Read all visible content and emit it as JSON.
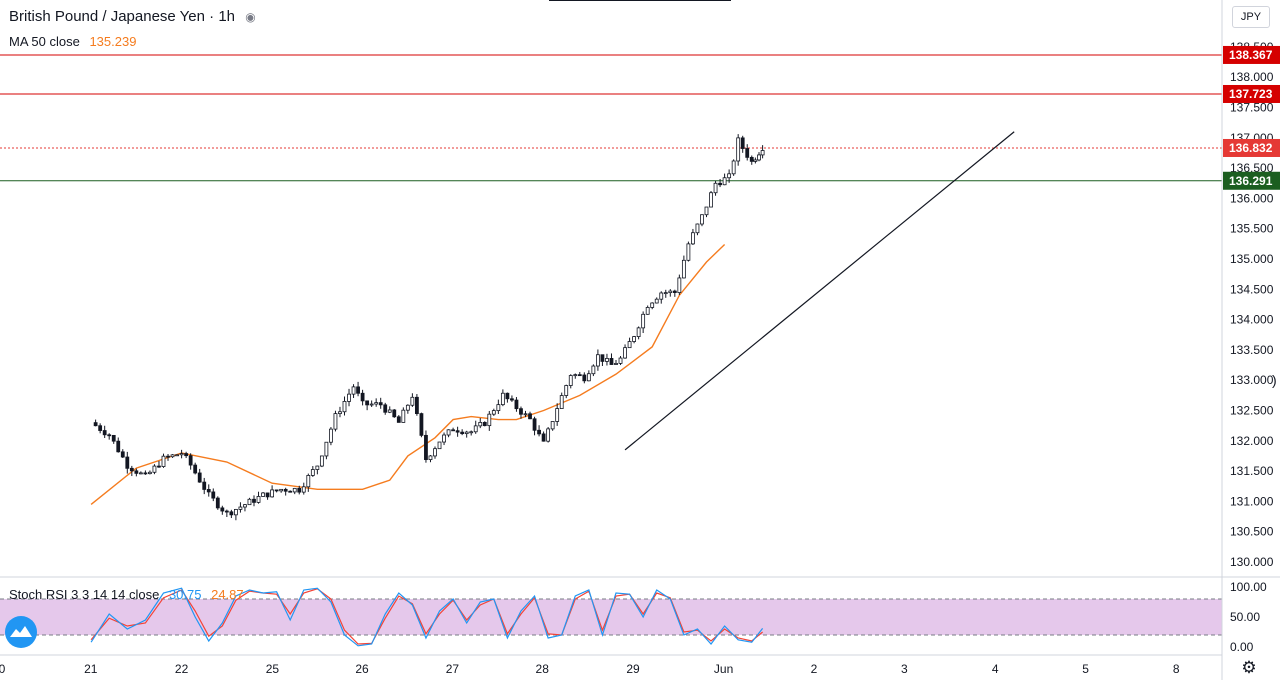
{
  "header": {
    "symbol": "British Pound / Japanese Yen",
    "separator": "·",
    "interval": "1h",
    "visibility_icon": "eye-icon"
  },
  "ma_legend": {
    "label": "MA 50 close",
    "value": "135.239"
  },
  "stoch_legend": {
    "label": "Stoch RSI 3 3 14 14 close",
    "k_value": "30.75",
    "d_value": "24.87"
  },
  "currency_button": "JPY",
  "colors": {
    "up": "#26a69a",
    "down": "#ef5350",
    "candle": "#131722",
    "ma": "#f57c1f",
    "stoch_k": "#2196f3",
    "stoch_d": "#f44336",
    "stoch_band": "#e1bee7",
    "resistance": "#d50000",
    "support": "#1b5e20",
    "price_line": "#e53935"
  },
  "chart_data": [
    {
      "type": "candlestick",
      "title": "British Pound / Japanese Yen · 1h",
      "ylim": [
        129.8,
        138.8
      ],
      "x_ticks": [
        "0",
        "21",
        "22",
        "25",
        "26",
        "27",
        "28",
        "29",
        "Jun",
        "2",
        "3",
        "4",
        "5",
        "8"
      ],
      "y_ticks": [
        "130.000",
        "130.500",
        "131.000",
        "131.500",
        "132.000",
        "132.500",
        "133.000",
        "133.500",
        "134.000",
        "134.500",
        "135.000",
        "135.500",
        "136.000",
        "136.500",
        "137.000",
        "137.500",
        "138.000",
        "138.500"
      ],
      "price_labels": [
        {
          "value": "138.367",
          "kind": "resistance"
        },
        {
          "value": "137.723",
          "kind": "resistance"
        },
        {
          "value": "136.832",
          "kind": "last"
        },
        {
          "value": "136.291",
          "kind": "support"
        }
      ],
      "trendline": {
        "from": {
          "x": 0.6,
          "y": 131.85
        },
        "to": {
          "x": 4.1,
          "y": 137.1
        }
      },
      "ma50": [
        [
          -1,
          130.95
        ],
        [
          -0.5,
          131.55
        ],
        [
          0,
          131.8
        ],
        [
          0.5,
          131.65
        ],
        [
          1,
          131.3
        ],
        [
          1.5,
          131.2
        ],
        [
          2,
          131.2
        ],
        [
          2.3,
          131.35
        ],
        [
          2.5,
          131.75
        ],
        [
          2.8,
          132.05
        ],
        [
          3,
          132.35
        ],
        [
          3.2,
          132.4
        ],
        [
          3.5,
          132.35
        ],
        [
          3.7,
          132.35
        ],
        [
          4,
          132.5
        ],
        [
          4.4,
          132.75
        ],
        [
          4.8,
          133.1
        ],
        [
          5.2,
          133.55
        ],
        [
          5.5,
          134.4
        ],
        [
          5.8,
          134.95
        ],
        [
          6,
          135.24
        ]
      ],
      "price_path": [
        [
          -1,
          132.3
        ],
        [
          -0.8,
          132.1
        ],
        [
          -0.6,
          131.6
        ],
        [
          -0.4,
          131.4
        ],
        [
          -0.2,
          131.7
        ],
        [
          0,
          131.8
        ],
        [
          0.1,
          131.6
        ],
        [
          0.3,
          131.1
        ],
        [
          0.5,
          130.8
        ],
        [
          0.7,
          130.95
        ],
        [
          0.9,
          131.1
        ],
        [
          1.1,
          131.2
        ],
        [
          1.3,
          131.2
        ],
        [
          1.5,
          131.6
        ],
        [
          1.7,
          132.4
        ],
        [
          1.9,
          132.9
        ],
        [
          2.0,
          132.6
        ],
        [
          2.2,
          132.6
        ],
        [
          2.4,
          132.3
        ],
        [
          2.55,
          132.75
        ],
        [
          2.7,
          131.7
        ],
        [
          2.85,
          132.0
        ],
        [
          3.0,
          132.2
        ],
        [
          3.2,
          132.15
        ],
        [
          3.35,
          132.3
        ],
        [
          3.55,
          132.75
        ],
        [
          3.7,
          132.55
        ],
        [
          3.85,
          132.35
        ],
        [
          4.0,
          131.95
        ],
        [
          4.15,
          132.55
        ],
        [
          4.3,
          133.1
        ],
        [
          4.45,
          133.05
        ],
        [
          4.6,
          133.4
        ],
        [
          4.75,
          133.25
        ],
        [
          4.85,
          133.35
        ],
        [
          5.0,
          133.75
        ],
        [
          5.15,
          134.25
        ],
        [
          5.3,
          134.45
        ],
        [
          5.45,
          134.45
        ],
        [
          5.6,
          135.25
        ],
        [
          5.75,
          135.7
        ],
        [
          5.9,
          136.25
        ],
        [
          6.05,
          136.35
        ],
        [
          6.15,
          136.95
        ],
        [
          6.3,
          136.6
        ],
        [
          6.42,
          136.85
        ]
      ]
    },
    {
      "type": "line",
      "title": "Stoch RSI 3 3 14 14 close",
      "ylim": [
        0,
        100
      ],
      "y_ticks": [
        "100.00",
        "50.00",
        "0.00"
      ],
      "upper_band": 80,
      "lower_band": 20,
      "k_series": [
        [
          -1,
          8
        ],
        [
          -0.8,
          55
        ],
        [
          -0.6,
          30
        ],
        [
          -0.4,
          45
        ],
        [
          -0.2,
          90
        ],
        [
          0,
          98
        ],
        [
          0.15,
          50
        ],
        [
          0.3,
          10
        ],
        [
          0.45,
          40
        ],
        [
          0.6,
          85
        ],
        [
          0.75,
          95
        ],
        [
          0.9,
          90
        ],
        [
          1.05,
          92
        ],
        [
          1.2,
          45
        ],
        [
          1.35,
          95
        ],
        [
          1.5,
          98
        ],
        [
          1.65,
          75
        ],
        [
          1.8,
          20
        ],
        [
          1.95,
          2
        ],
        [
          2.1,
          5
        ],
        [
          2.25,
          55
        ],
        [
          2.4,
          90
        ],
        [
          2.55,
          70
        ],
        [
          2.7,
          15
        ],
        [
          2.85,
          60
        ],
        [
          3.0,
          80
        ],
        [
          3.15,
          40
        ],
        [
          3.3,
          75
        ],
        [
          3.45,
          80
        ],
        [
          3.6,
          15
        ],
        [
          3.75,
          60
        ],
        [
          3.9,
          85
        ],
        [
          4.05,
          15
        ],
        [
          4.2,
          20
        ],
        [
          4.35,
          85
        ],
        [
          4.5,
          95
        ],
        [
          4.65,
          20
        ],
        [
          4.8,
          90
        ],
        [
          4.95,
          88
        ],
        [
          5.1,
          50
        ],
        [
          5.25,
          95
        ],
        [
          5.4,
          80
        ],
        [
          5.55,
          20
        ],
        [
          5.7,
          30
        ],
        [
          5.85,
          5
        ],
        [
          6.0,
          35
        ],
        [
          6.15,
          12
        ],
        [
          6.3,
          8
        ],
        [
          6.42,
          31
        ]
      ],
      "d_series": [
        [
          -1,
          12
        ],
        [
          -0.8,
          48
        ],
        [
          -0.6,
          35
        ],
        [
          -0.4,
          40
        ],
        [
          -0.2,
          82
        ],
        [
          0,
          95
        ],
        [
          0.15,
          60
        ],
        [
          0.3,
          18
        ],
        [
          0.45,
          35
        ],
        [
          0.6,
          78
        ],
        [
          0.75,
          93
        ],
        [
          0.9,
          90
        ],
        [
          1.05,
          88
        ],
        [
          1.2,
          55
        ],
        [
          1.35,
          90
        ],
        [
          1.5,
          97
        ],
        [
          1.65,
          80
        ],
        [
          1.8,
          28
        ],
        [
          1.95,
          5
        ],
        [
          2.1,
          6
        ],
        [
          2.25,
          48
        ],
        [
          2.4,
          85
        ],
        [
          2.55,
          72
        ],
        [
          2.7,
          22
        ],
        [
          2.85,
          55
        ],
        [
          3.0,
          78
        ],
        [
          3.15,
          45
        ],
        [
          3.3,
          70
        ],
        [
          3.45,
          80
        ],
        [
          3.6,
          22
        ],
        [
          3.75,
          55
        ],
        [
          3.9,
          82
        ],
        [
          4.05,
          22
        ],
        [
          4.2,
          20
        ],
        [
          4.35,
          80
        ],
        [
          4.5,
          93
        ],
        [
          4.65,
          28
        ],
        [
          4.8,
          85
        ],
        [
          4.95,
          88
        ],
        [
          5.1,
          55
        ],
        [
          5.25,
          90
        ],
        [
          5.4,
          82
        ],
        [
          5.55,
          25
        ],
        [
          5.7,
          28
        ],
        [
          5.85,
          10
        ],
        [
          6.0,
          30
        ],
        [
          6.15,
          15
        ],
        [
          6.3,
          10
        ],
        [
          6.42,
          25
        ]
      ]
    }
  ]
}
